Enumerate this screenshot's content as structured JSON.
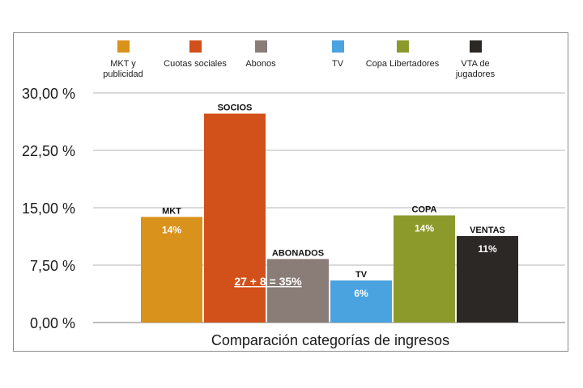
{
  "chart_data": {
    "type": "bar",
    "title": "",
    "xlabel": "Comparación categorías de ingresos",
    "ylabel": "",
    "ylim": [
      0,
      30
    ],
    "yticks": [
      "30,00 %",
      "22,50 %",
      "15,00 %",
      "7,50 %",
      "0,00 %"
    ],
    "ytick_values": [
      30,
      22.5,
      15,
      7.5,
      0
    ],
    "grid": true,
    "legend_position": "top",
    "categories": [
      "MKT y publicidad",
      "Cuotas sociales",
      "Abonos",
      "TV",
      "Copa Libertadores",
      "VTA de jugadores"
    ],
    "legend_lines": [
      [
        "MKT y",
        "publicidad"
      ],
      [
        "Cuotas sociales"
      ],
      [
        "Abonos"
      ],
      [
        "TV"
      ],
      [
        "Copa Libertadores"
      ],
      [
        "VTA de",
        "jugadores"
      ]
    ],
    "values": [
      13.8,
      27.3,
      8.3,
      5.5,
      14,
      11.3
    ],
    "bar_top_labels": [
      "MKT",
      "SOCIOS",
      "ABONADOS",
      "TV",
      "COPA",
      "VENTAS"
    ],
    "bar_inner_labels": [
      "14%",
      "",
      "",
      "6%",
      "14%",
      "11%"
    ],
    "colors": [
      "#d9921c",
      "#d2501a",
      "#8a7d78",
      "#4aa3df",
      "#8c9a2c",
      "#2c2826"
    ],
    "annotation": "27 + 8 = 35%"
  }
}
